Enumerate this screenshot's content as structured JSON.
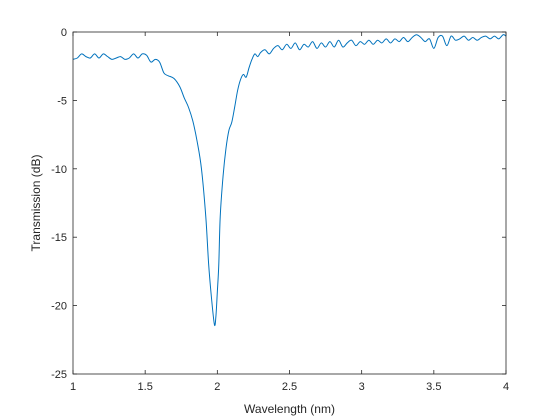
{
  "chart_data": {
    "type": "line",
    "title": "",
    "xlabel": "Wavelength (nm)",
    "ylabel": "Transmission (dB)",
    "xlim": [
      1,
      4
    ],
    "ylim": [
      -25,
      0
    ],
    "xticks": [
      1,
      1.5,
      2,
      2.5,
      3,
      3.5,
      4
    ],
    "xtick_labels": [
      "1",
      "1.5",
      "2",
      "2.5",
      "3",
      "3.5",
      "4"
    ],
    "yticks": [
      0,
      -5,
      -10,
      -15,
      -20,
      -25
    ],
    "ytick_labels": [
      "0",
      "-5",
      "-10",
      "-15",
      "-20",
      "-25"
    ],
    "grid": false,
    "line_color": "#0072BD",
    "series": [
      {
        "x": [
          1.0,
          1.03,
          1.06,
          1.09,
          1.12,
          1.15,
          1.18,
          1.21,
          1.24,
          1.27,
          1.3,
          1.33,
          1.36,
          1.39,
          1.42,
          1.45,
          1.48,
          1.51,
          1.54,
          1.57,
          1.6,
          1.63,
          1.66,
          1.7,
          1.74,
          1.77,
          1.8,
          1.83,
          1.86,
          1.89,
          1.92,
          1.94,
          1.96,
          1.98,
          1.99,
          2.0,
          2.01,
          2.02,
          2.04,
          2.06,
          2.08,
          2.1,
          2.12,
          2.14,
          2.16,
          2.18,
          2.2,
          2.22,
          2.24,
          2.26,
          2.28,
          2.3,
          2.33,
          2.36,
          2.39,
          2.42,
          2.45,
          2.48,
          2.51,
          2.54,
          2.57,
          2.6,
          2.63,
          2.66,
          2.69,
          2.72,
          2.75,
          2.78,
          2.81,
          2.84,
          2.87,
          2.9,
          2.93,
          2.96,
          2.99,
          3.02,
          3.05,
          3.08,
          3.11,
          3.14,
          3.17,
          3.2,
          3.23,
          3.26,
          3.29,
          3.32,
          3.35,
          3.38,
          3.41,
          3.44,
          3.47,
          3.5,
          3.53,
          3.56,
          3.59,
          3.62,
          3.65,
          3.68,
          3.71,
          3.74,
          3.77,
          3.8,
          3.83,
          3.86,
          3.89,
          3.92,
          3.95,
          3.98,
          4.0
        ],
        "y": [
          -2.0,
          -1.9,
          -1.6,
          -1.8,
          -1.9,
          -1.6,
          -1.9,
          -1.6,
          -1.8,
          -2.0,
          -1.9,
          -1.8,
          -2.0,
          -1.9,
          -1.6,
          -1.9,
          -1.6,
          -1.7,
          -2.2,
          -2.0,
          -2.2,
          -3.0,
          -3.2,
          -3.4,
          -4.0,
          -4.8,
          -5.5,
          -6.5,
          -8.0,
          -10.0,
          -13.5,
          -17.0,
          -19.5,
          -21.4,
          -20.8,
          -19.0,
          -17.0,
          -13.5,
          -10.5,
          -8.5,
          -7.2,
          -6.6,
          -5.5,
          -4.3,
          -3.5,
          -3.1,
          -3.3,
          -2.6,
          -2.0,
          -1.6,
          -1.8,
          -1.5,
          -1.3,
          -1.6,
          -1.2,
          -1.0,
          -1.3,
          -0.9,
          -1.2,
          -0.8,
          -1.3,
          -0.9,
          -1.1,
          -0.7,
          -1.2,
          -0.8,
          -1.1,
          -0.7,
          -1.1,
          -0.6,
          -1.1,
          -0.8,
          -0.6,
          -1.0,
          -0.7,
          -0.9,
          -0.6,
          -0.9,
          -0.6,
          -0.8,
          -0.5,
          -0.8,
          -0.5,
          -0.7,
          -0.4,
          -0.7,
          -0.4,
          -0.2,
          -0.4,
          -0.7,
          -0.5,
          -1.2,
          -0.4,
          -0.3,
          -1.0,
          -0.3,
          -0.6,
          -0.5,
          -0.3,
          -0.6,
          -0.4,
          -0.6,
          -0.4,
          -0.3,
          -0.5,
          -0.3,
          -0.5,
          -0.2,
          -0.3
        ]
      }
    ]
  }
}
